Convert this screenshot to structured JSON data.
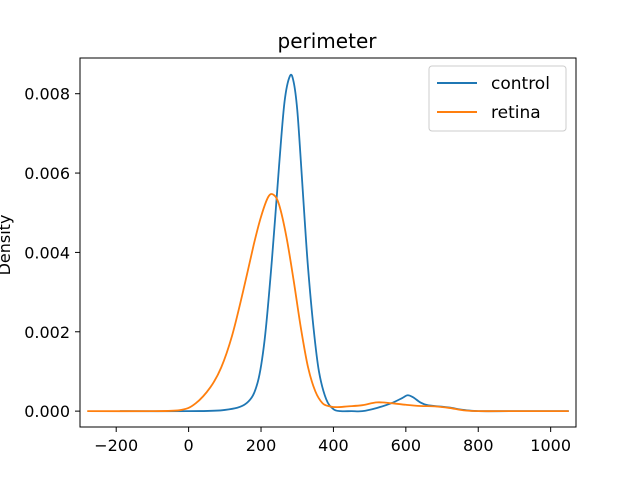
{
  "chart_data": {
    "type": "line",
    "title": "perimeter",
    "xlabel": "",
    "ylabel": "Density",
    "xlim": [
      -300,
      1070
    ],
    "ylim": [
      -0.0004,
      0.0089
    ],
    "x_ticks": [
      -200,
      0,
      200,
      400,
      600,
      800,
      1000
    ],
    "x_tick_labels": [
      "−200",
      "0",
      "200",
      "400",
      "600",
      "800",
      "1000"
    ],
    "y_ticks": [
      0.0,
      0.002,
      0.004,
      0.006,
      0.008
    ],
    "y_tick_labels": [
      "0.000",
      "0.002",
      "0.004",
      "0.006",
      "0.008"
    ],
    "grid": false,
    "legend_position": "top-right",
    "series": [
      {
        "name": "control",
        "color": "#1f77b4",
        "x": [
          -190,
          0,
          100,
          160,
          190,
          210,
          230,
          250,
          265,
          280,
          290,
          300,
          310,
          320,
          330,
          345,
          360,
          380,
          400,
          420,
          450,
          480,
          520,
          560,
          590,
          605,
          620,
          640,
          660,
          690,
          720,
          760,
          800,
          900,
          1050
        ],
        "y": [
          0.0,
          0.0,
          3e-05,
          0.0002,
          0.0007,
          0.0018,
          0.0038,
          0.0062,
          0.0078,
          0.00845,
          0.0083,
          0.0076,
          0.0063,
          0.0049,
          0.0036,
          0.0021,
          0.001,
          0.0003,
          5e-05,
          0.0,
          0.0,
          0.0,
          8e-05,
          0.0002,
          0.00033,
          0.0004,
          0.00035,
          0.00022,
          0.00015,
          0.00012,
          9e-05,
          3e-05,
          0.0,
          0.0,
          0.0
        ]
      },
      {
        "name": "retina",
        "color": "#ff7f0e",
        "x": [
          -280,
          -100,
          -20,
          20,
          60,
          90,
          120,
          150,
          180,
          200,
          220,
          235,
          250,
          270,
          290,
          310,
          330,
          350,
          370,
          390,
          410,
          440,
          480,
          520,
          560,
          600,
          640,
          680,
          720,
          760,
          800,
          900,
          1050
        ],
        "y": [
          0.0,
          0.0,
          3e-05,
          0.0002,
          0.0006,
          0.0011,
          0.0019,
          0.003,
          0.0042,
          0.0049,
          0.0054,
          0.00545,
          0.0052,
          0.0044,
          0.0033,
          0.0021,
          0.0011,
          0.0005,
          0.0002,
          0.00012,
          0.0001,
          0.00012,
          0.00015,
          0.00022,
          0.0002,
          0.00016,
          0.00013,
          0.00012,
          8e-05,
          2e-05,
          0.0,
          0.0,
          0.0
        ]
      }
    ]
  }
}
